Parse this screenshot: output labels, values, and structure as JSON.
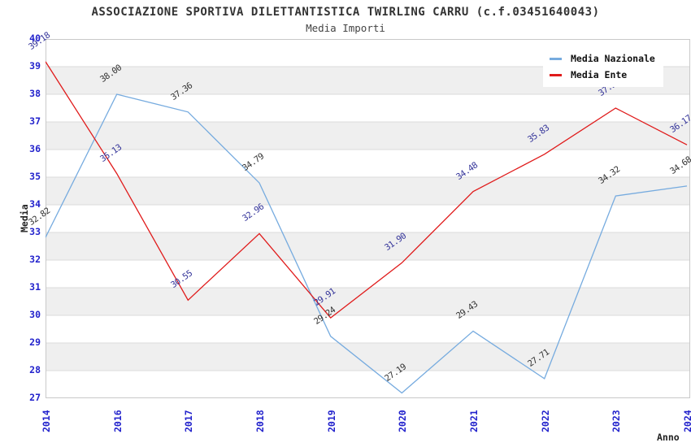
{
  "title": "ASSOCIAZIONE SPORTIVA DILETTANTISTICA TWIRLING CARRU (c.f.03451640043)",
  "subtitle": "Media Importi",
  "colors": {
    "tick_label": "#2222CC",
    "band": "#EFEFEF",
    "gridline": "#DBDBDB",
    "plot_border": "#C9C9C9",
    "title_text": "#333333"
  },
  "legend": {
    "position": "top-right",
    "items": [
      "Media Nazionale",
      "Media Ente"
    ]
  },
  "chart_data": {
    "type": "line",
    "title": "ASSOCIAZIONE SPORTIVA DILETTANTISTICA TWIRLING CARRU (c.f.03451640043)",
    "subtitle": "Media Importi",
    "xlabel": "Anno",
    "ylabel": "Media",
    "ylim": [
      27,
      40
    ],
    "y_ticks": [
      27,
      28,
      29,
      30,
      31,
      32,
      33,
      34,
      35,
      36,
      37,
      38,
      39,
      40
    ],
    "grid": "horizontal",
    "alternating_bands": true,
    "markers": false,
    "value_decimals": 2,
    "categories": [
      "2014",
      "2016",
      "2017",
      "2018",
      "2019",
      "2020",
      "2021",
      "2022",
      "2023",
      "2024"
    ],
    "series": [
      {
        "name": "Media Nazionale",
        "color": "#76ABDF",
        "label_color": "#333333",
        "values": [
          32.82,
          38.0,
          37.36,
          34.79,
          29.24,
          27.19,
          29.43,
          27.71,
          34.32,
          34.68
        ]
      },
      {
        "name": "Media Ente",
        "color": "#E01B1B",
        "label_color": "#333399",
        "values": [
          39.18,
          35.13,
          30.55,
          32.96,
          29.91,
          31.9,
          34.48,
          35.83,
          37.5,
          36.17
        ]
      }
    ]
  }
}
